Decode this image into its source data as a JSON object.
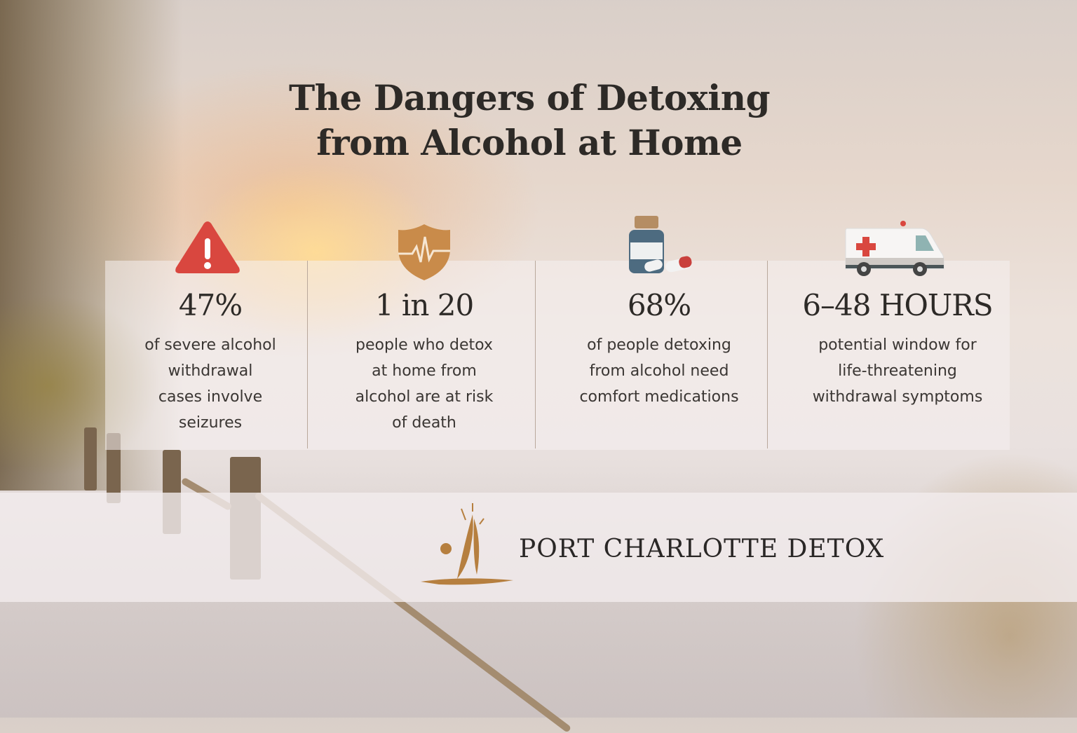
{
  "title_lines": [
    "The Dangers of Detoxing",
    "from Alcohol at Home"
  ],
  "stats": [
    {
      "icon": "warning-triangle-icon",
      "value": "47%",
      "description": [
        "of severe alcohol",
        "withdrawal",
        "cases involve",
        "seizures"
      ]
    },
    {
      "icon": "shield-heartbeat-icon",
      "value": "1 in 20",
      "description": [
        "people who detox",
        "at home from",
        "alcohol are at risk",
        "of death"
      ]
    },
    {
      "icon": "medicine-bottle-pills-icon",
      "value": "68%",
      "description": [
        "of people detoxing",
        "from alcohol need",
        "comfort medications"
      ]
    },
    {
      "icon": "ambulance-icon",
      "value": "6–48 HOURS",
      "description": [
        "potential window for",
        "life-threatening",
        "withdrawal symptoms"
      ]
    }
  ],
  "brand": {
    "name": "PORT CHARLOTTE DETOX",
    "logo": "sailboat-sun-logo"
  },
  "colors": {
    "warning": "#d9473f",
    "shield": "#c98b4a",
    "bottle": "#4d6b80",
    "logo": "#b67f3f",
    "text": "#2d2a27"
  }
}
